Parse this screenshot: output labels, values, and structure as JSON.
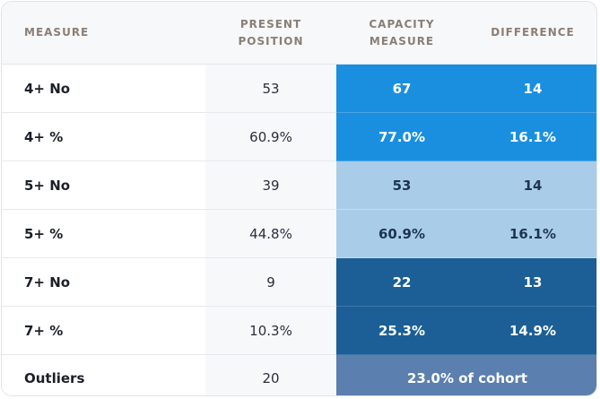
{
  "table": {
    "headers": [
      {
        "line1": "MEASURE",
        "line2": ""
      },
      {
        "line1": "PRESENT",
        "line2": "POSITION"
      },
      {
        "line1": "CAPACITY",
        "line2": "MEASURE"
      },
      {
        "line1": "DIFFERENCE",
        "line2": ""
      }
    ],
    "rows": [
      {
        "measure": "4+ No",
        "present": "53",
        "capacity": "67",
        "difference": "14"
      },
      {
        "measure": "4+ %",
        "present": "60.9%",
        "capacity": "77.0%",
        "difference": "16.1%"
      },
      {
        "measure": "5+ No",
        "present": "39",
        "capacity": "53",
        "difference": "14"
      },
      {
        "measure": "5+ %",
        "present": "44.8%",
        "capacity": "60.9%",
        "difference": "16.1%"
      },
      {
        "measure": "7+ No",
        "present": "9",
        "capacity": "22",
        "difference": "13"
      },
      {
        "measure": "7+ %",
        "present": "10.3%",
        "capacity": "25.3%",
        "difference": "14.9%"
      }
    ],
    "outliers": {
      "measure": "Outliers",
      "present": "20",
      "summary": "23.0% of cohort"
    }
  },
  "colors": {
    "bright_blue": "#1a8fe0",
    "light_blue": "#a9cde9",
    "dark_blue": "#1b5f96",
    "slate_blue": "#5b7fae",
    "header_text": "#8a7f75"
  }
}
